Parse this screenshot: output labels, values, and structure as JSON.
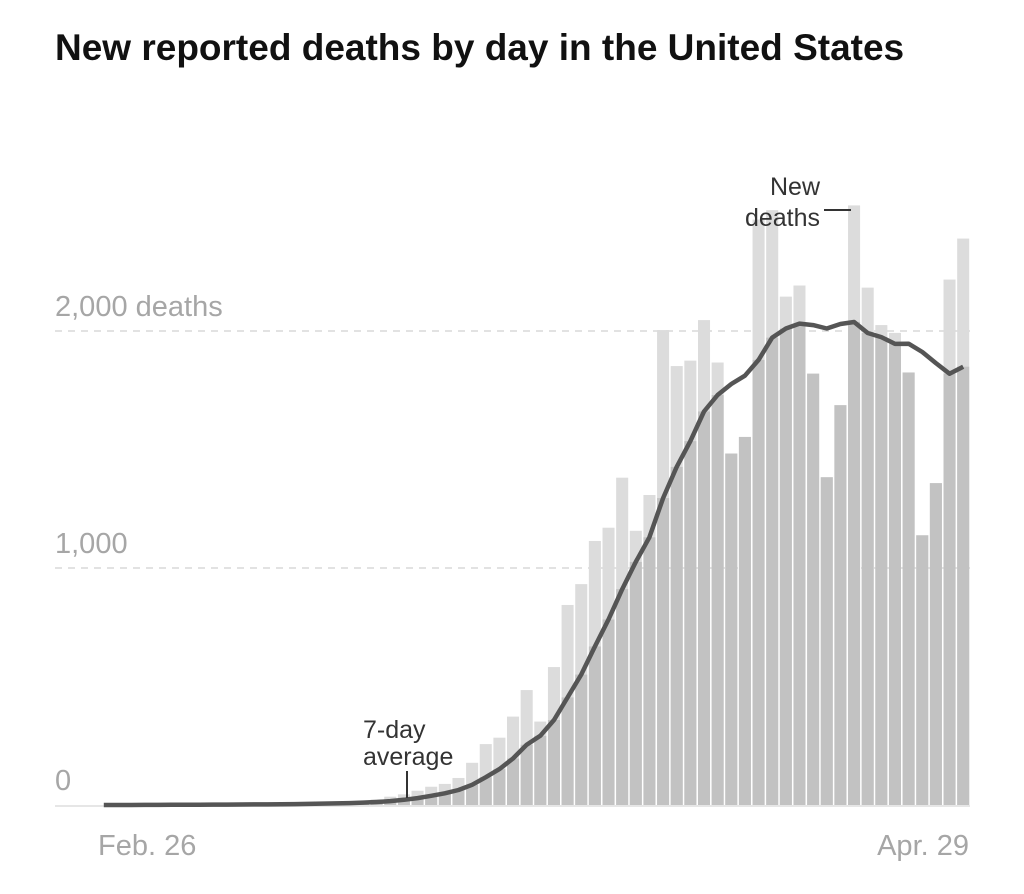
{
  "chart_data": {
    "type": "bar",
    "title": "New reported deaths by day in the United States",
    "xlabel": "",
    "ylabel": "",
    "ylim": [
      0,
      2700
    ],
    "yticks": [
      {
        "value": 0,
        "label": "0"
      },
      {
        "value": 1000,
        "label": "1,000"
      },
      {
        "value": 2000,
        "label": "2,000 deaths"
      }
    ],
    "x_tick_labels": [
      "Feb. 26",
      "Apr. 29"
    ],
    "grid": true,
    "series": [
      {
        "name": "New deaths",
        "type": "bar",
        "color": "#dcdcdc",
        "values": [
          0,
          0,
          0,
          1,
          1,
          4,
          1,
          3,
          1,
          2,
          3,
          4,
          4,
          5,
          8,
          7,
          10,
          9,
          13,
          18,
          23,
          35,
          45,
          60,
          77,
          89,
          114,
          178,
          257,
          284,
          373,
          485,
          352,
          582,
          844,
          932,
          1114,
          1170,
          1381,
          1157,
          1308,
          2004,
          1852,
          1875,
          2046,
          1867,
          1483,
          1553,
          2470,
          2510,
          2145,
          2192,
          1820,
          1383,
          1687,
          2530,
          2183,
          2025,
          1992,
          1825,
          1138,
          1358,
          2217,
          2390
        ]
      },
      {
        "name": "7-day average",
        "type": "line",
        "color": "#555555",
        "window_days": 7
      }
    ],
    "annotations": [
      {
        "label_line1": "7-day",
        "label_line2": "average"
      },
      {
        "label_line1": "New",
        "label_line2": "deaths"
      }
    ]
  }
}
